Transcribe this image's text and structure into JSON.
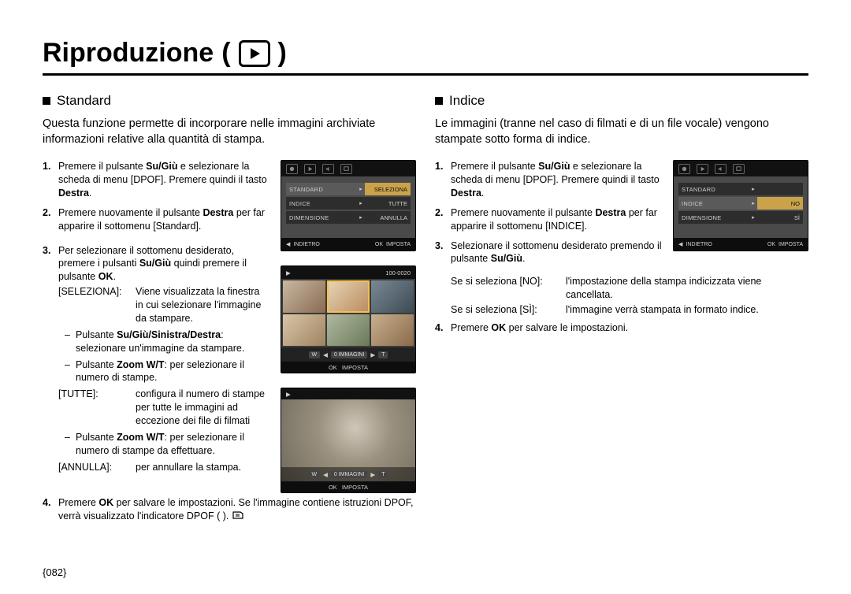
{
  "title": "Riproduzione",
  "left": {
    "heading": "Standard",
    "intro": "Questa funzione permette di incorporare nelle immagini archiviate informazioni relative alla quantità di stampa.",
    "step1_a": "Premere il pulsante ",
    "step1_b": "Su/Giù",
    "step1_c": " e selezionare la scheda di menu [DPOF]. Premere quindi il tasto ",
    "step1_d": "Destra",
    "step1_e": ".",
    "step2_a": "Premere nuovamente il pulsante ",
    "step2_b": "Destra",
    "step2_c": " per far apparire il sottomenu [Standard].",
    "step3_a": "Per selezionare il sottomenu desiderato, premere i pulsanti ",
    "step3_b": "Su/Giù",
    "step3_c": " quindi premere il pulsante ",
    "step3_d": "OK",
    "step3_e": ".",
    "seleziona_lbl": "[SELEZIONA]:",
    "seleziona_txt": "Viene visualizzata la finestra in cui selezionare l'immagine da stampare.",
    "s3_d1_a": "Pulsante ",
    "s3_d1_b": "Su/Giù/Sinistra/Destra",
    "s3_d1_c": ": selezionare un'immagine da stampare.",
    "s3_d2_a": "Pulsante ",
    "s3_d2_b": "Zoom W/T",
    "s3_d2_c": ": per selezionare il numero di stampe.",
    "tutte_lbl": "[TUTTE]:",
    "tutte_txt": "configura il numero di stampe per tutte le immagini ad eccezione dei file di filmati",
    "s3_d3_a": "Pulsante ",
    "s3_d3_b": "Zoom W/T",
    "s3_d3_c": ": per selezionare il numero di stampe da effettuare.",
    "annulla_lbl": "[ANNULLA]:",
    "annulla_txt": "per annullare la stampa.",
    "step4_a": "Premere ",
    "step4_b": "OK",
    "step4_c": " per salvare le impostazioni. Se l'immagine contiene istruzioni DPOF, verrà visualizzato l'indicatore DPOF (      ).",
    "menu": {
      "rows": [
        {
          "label": "STANDARD",
          "value": "SELEZIONA",
          "selected": true
        },
        {
          "label": "INDICE",
          "value": "TUTTE",
          "selected": false
        },
        {
          "label": "DIMENSIONE",
          "value": "ANNULLA",
          "selected": false
        }
      ],
      "back": "INDIETRO",
      "ok": "OK",
      "set": "IMPOSTA",
      "background_color": "#4a4a4a",
      "row_bg": "#2d2d2d",
      "sel_value_bg": "#c9a24a"
    },
    "thumbs": {
      "counter": "100-0020",
      "w": "W",
      "t": "T",
      "label": "0 IMMAGINI",
      "ok": "OK",
      "set": "IMPOSTA",
      "selected_index": 1,
      "sel_color": "#f5c04a"
    },
    "photo": {
      "w": "W",
      "t": "T",
      "label": "0 IMMAGINI",
      "ok": "OK",
      "set": "IMPOSTA"
    }
  },
  "right": {
    "heading": "Indice",
    "intro": "Le immagini (tranne nel caso di filmati e di un file vocale) vengono stampate sotto forma di indice.",
    "step1_a": "Premere il pulsante ",
    "step1_b": "Su/Giù",
    "step1_c": " e selezionare la scheda di menu [DPOF]. Premere quindi il tasto ",
    "step1_d": "Destra",
    "step1_e": ".",
    "step2_a": "Premere nuovamente il pulsante ",
    "step2_b": "Destra",
    "step2_c": " per far apparire il sottomenu [INDICE].",
    "step3_a": "Selezionare il sottomenu desiderato premendo il pulsante ",
    "step3_b": "Su/Giù",
    "step3_c": ".",
    "no_lbl": "Se si seleziona [NO]:",
    "no_txt": "l'impostazione della stampa indicizzata viene cancellata.",
    "si_lbl": "Se si seleziona [SÌ]:",
    "si_txt": "l'immagine verrà stampata in formato indice.",
    "step4_a": "Premere ",
    "step4_b": "OK",
    "step4_c": " per salvare le impostazioni.",
    "menu": {
      "rows": [
        {
          "label": "STANDARD",
          "value": "",
          "selected": false
        },
        {
          "label": "INDICE",
          "value": "NO",
          "selected": true
        },
        {
          "label": "DIMENSIONE",
          "value": "SÌ",
          "selected": false
        }
      ],
      "back": "INDIETRO",
      "ok": "OK",
      "set": "IMPOSTA",
      "background_color": "#4a4a4a",
      "row_bg": "#2d2d2d",
      "sel_value_bg": "#c9a24a"
    }
  },
  "page_number": "082",
  "colors": {
    "text": "#000000",
    "bg": "#ffffff",
    "lcd_bg": "#1f1f1f",
    "lcd_bar": "#111111"
  }
}
